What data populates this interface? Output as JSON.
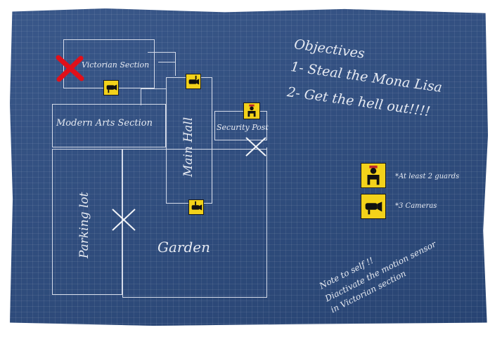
{
  "map": {
    "victorian_section": "Victorian Section",
    "modern_arts_section": "Modern Arts Section",
    "main_hall": "Main Hall",
    "security_post": "Security Post",
    "parking_lot": "Parking lot",
    "garden": "Garden"
  },
  "objectives": {
    "title": "Objectives",
    "items": [
      "1- Steal the Mona Lisa",
      "2- Get the hell out!!!!"
    ]
  },
  "legend": {
    "guards": "*At least 2 guards",
    "cameras": "*3 Cameras"
  },
  "note": {
    "line1": "Note to self !!",
    "line2": "Diactivate the motion sensor",
    "line3": "in Victorian section"
  },
  "colors": {
    "paper": "#2d4d82",
    "ink": "#e6eaf2",
    "target_mark": "#e0101a",
    "icon_fill": "#f3d21a"
  },
  "icons": [
    "camera-icon",
    "guard-icon",
    "red-x-mark",
    "white-x-mark"
  ]
}
